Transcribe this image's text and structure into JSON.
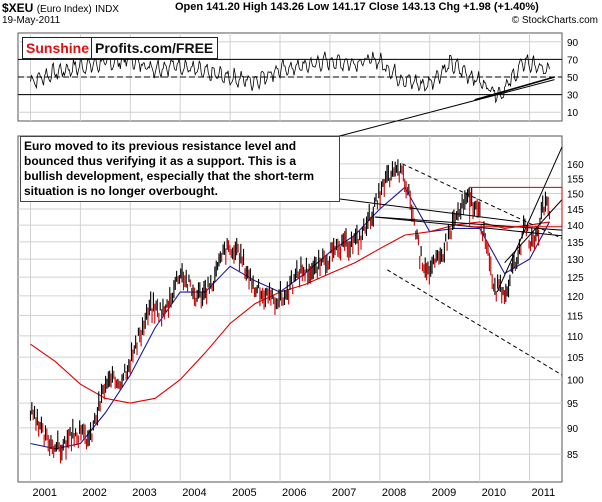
{
  "header": {
    "symbol": "$XEU",
    "symbol_sub": "(Euro Index)",
    "exchange": "INDX",
    "date": "19-May-2011",
    "ohlc": "Open 141.20  High 143.26  Low 141.17  Close 143.13  Chg +1.98 (+1.40%)",
    "credit": "© StockCharts.com"
  },
  "brand": {
    "red": "Sunshine",
    "black": "Profits.com/FREE"
  },
  "annotation": "Euro moved to its previous resistance level and bounced thus verifying it as a support. This is a bullish development, especially that the short-term situation is no longer overbought.",
  "colors": {
    "price_up": "#000000",
    "price_down": "#cc0000",
    "ma_fast": "#1a1aa0",
    "ma_slow": "#dd0000",
    "trend": "#000000",
    "grid": "#d0d0d0",
    "resistance_box": "#cc0000"
  },
  "chart_data": [
    {
      "type": "line",
      "title": "",
      "ylim": [
        0,
        100
      ],
      "y_ticks": [
        10,
        30,
        50,
        70,
        90
      ],
      "levels": [
        30,
        50,
        70
      ],
      "x": [
        "2001",
        "2001.5",
        "2002",
        "2002.5",
        "2003",
        "2003.5",
        "2004",
        "2004.5",
        "2005",
        "2005.5",
        "2006",
        "2006.5",
        "2007",
        "2007.5",
        "2008",
        "2008.5",
        "2009",
        "2009.5",
        "2010",
        "2010.5",
        "2011",
        "2011.4"
      ],
      "series": [
        {
          "values": [
            45,
            55,
            62,
            66,
            70,
            60,
            64,
            55,
            50,
            45,
            58,
            62,
            68,
            66,
            70,
            48,
            40,
            65,
            48,
            30,
            68,
            55
          ]
        }
      ]
    },
    {
      "type": "line",
      "title": "",
      "y_ticks": [
        85,
        90,
        95,
        100,
        105,
        110,
        115,
        120,
        125,
        130,
        135,
        140,
        145,
        150,
        155,
        160
      ],
      "ylim": [
        80,
        170
      ],
      "x_ticks": [
        "2001",
        "2002",
        "2003",
        "2004",
        "2005",
        "2006",
        "2007",
        "2008",
        "2009",
        "2010",
        "2011"
      ],
      "series": [
        {
          "kind": "price",
          "x": [
            2001.0,
            2001.3,
            2001.6,
            2001.9,
            2002.2,
            2002.5,
            2002.8,
            2003.1,
            2003.4,
            2003.7,
            2004.0,
            2004.3,
            2004.6,
            2004.9,
            2005.2,
            2005.5,
            2005.8,
            2006.1,
            2006.4,
            2006.7,
            2007.0,
            2007.3,
            2007.6,
            2007.9,
            2008.2,
            2008.4,
            2008.6,
            2008.8,
            2009.0,
            2009.2,
            2009.5,
            2009.8,
            2010.0,
            2010.3,
            2010.5,
            2010.7,
            2010.9,
            2011.1,
            2011.3,
            2011.4
          ],
          "values": [
            93,
            88,
            86,
            89,
            88,
            99,
            100,
            107,
            117,
            116,
            127,
            120,
            122,
            133,
            131,
            122,
            119,
            120,
            127,
            127,
            131,
            134,
            136,
            146,
            156,
            158,
            149,
            131,
            127,
            130,
            142,
            149,
            143,
            122,
            121,
            128,
            139,
            133,
            147,
            143
          ]
        },
        {
          "kind": "ma_fast",
          "x": [
            2001.0,
            2001.5,
            2002.0,
            2002.5,
            2003.0,
            2003.5,
            2004.0,
            2004.5,
            2005.0,
            2005.5,
            2006.0,
            2006.5,
            2007.0,
            2007.5,
            2008.0,
            2008.5,
            2009.0,
            2009.5,
            2010.0,
            2010.5,
            2011.0,
            2011.4
          ],
          "values": [
            87,
            86,
            87,
            93,
            101,
            112,
            121,
            121,
            128,
            124,
            121,
            126,
            132,
            137,
            145,
            152,
            138,
            139,
            139,
            126,
            130,
            141
          ]
        },
        {
          "kind": "ma_slow",
          "x": [
            2001.0,
            2001.5,
            2002.0,
            2002.5,
            2003.0,
            2003.5,
            2004.0,
            2004.5,
            2005.0,
            2005.5,
            2006.0,
            2006.5,
            2007.0,
            2007.5,
            2008.0,
            2008.5,
            2009.0,
            2009.5,
            2010.0,
            2010.5,
            2011.0,
            2011.4
          ],
          "values": [
            108,
            104,
            99,
            96,
            95,
            96,
            100,
            106,
            113,
            118,
            121,
            123,
            126,
            129,
            133,
            137,
            138,
            140,
            141,
            139,
            140,
            141
          ]
        }
      ]
    }
  ]
}
